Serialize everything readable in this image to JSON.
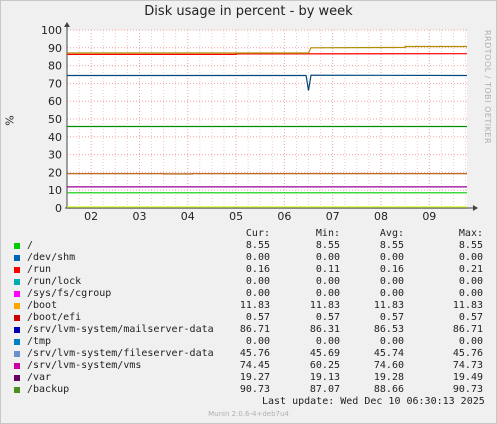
{
  "title": "Disk usage in percent - by week",
  "side_label": "RRDTOOL / TOBI OETIKER",
  "ylabel": "%",
  "chart_data": {
    "type": "line",
    "title": "Disk usage in percent - by week",
    "xlabel": "",
    "ylabel": "%",
    "ylim": [
      0,
      100
    ],
    "yticks": [
      0,
      10,
      20,
      30,
      40,
      50,
      60,
      70,
      80,
      90,
      100
    ],
    "xlim": [
      1.5,
      9.78
    ],
    "xticks": [
      2,
      3,
      4,
      5,
      6,
      7,
      8,
      9
    ],
    "xtick_labels": [
      "02",
      "03",
      "04",
      "05",
      "06",
      "07",
      "08",
      "09"
    ],
    "grid": true,
    "series": [
      {
        "name": "/",
        "color": "#00cc00",
        "points": [
          [
            1.5,
            8.55
          ],
          [
            9.78,
            8.55
          ]
        ]
      },
      {
        "name": "/dev/shm",
        "color": "#0066b3",
        "points": [
          [
            1.5,
            0.0
          ],
          [
            9.78,
            0.0
          ]
        ]
      },
      {
        "name": "/run",
        "color": "#ff8000",
        "points": [
          [
            1.5,
            0.16
          ],
          [
            9.78,
            0.16
          ]
        ]
      },
      {
        "name": "/run/lock",
        "color": "#ffcc00",
        "points": [
          [
            1.5,
            0.0
          ],
          [
            9.78,
            0.0
          ]
        ]
      },
      {
        "name": "/sys/fs/cgroup",
        "color": "#330099",
        "points": [
          [
            1.5,
            0.0
          ],
          [
            9.78,
            0.0
          ]
        ]
      },
      {
        "name": "/boot",
        "color": "#990099",
        "points": [
          [
            1.5,
            11.83
          ],
          [
            9.78,
            11.83
          ]
        ]
      },
      {
        "name": "/boot/efi",
        "color": "#ccff00",
        "points": [
          [
            1.5,
            0.57
          ],
          [
            9.78,
            0.57
          ]
        ]
      },
      {
        "name": "/srv/lvm-system/mailserver-data",
        "color": "#ff0000",
        "points": [
          [
            1.5,
            86.31
          ],
          [
            5.0,
            86.31
          ],
          [
            5.0,
            86.6
          ],
          [
            9.78,
            86.71
          ]
        ]
      },
      {
        "name": "/tmp",
        "color": "#808080",
        "points": [
          [
            1.5,
            0.0
          ],
          [
            9.78,
            0.0
          ]
        ]
      },
      {
        "name": "/srv/lvm-system/fileserver-data",
        "color": "#008f00",
        "points": [
          [
            1.5,
            45.76
          ],
          [
            9.78,
            45.76
          ]
        ]
      },
      {
        "name": "/srv/lvm-system/vms",
        "color": "#00487d",
        "points": [
          [
            1.5,
            74.45
          ],
          [
            6.45,
            74.45
          ],
          [
            6.5,
            66.0
          ],
          [
            6.55,
            74.6
          ],
          [
            9.78,
            74.45
          ]
        ]
      },
      {
        "name": "/var",
        "color": "#b35a00",
        "points": [
          [
            1.5,
            19.27
          ],
          [
            3.5,
            19.27
          ],
          [
            3.5,
            19.13
          ],
          [
            4.1,
            19.13
          ],
          [
            4.1,
            19.27
          ],
          [
            9.78,
            19.27
          ]
        ]
      },
      {
        "name": "/backup",
        "color": "#b38f00",
        "points": [
          [
            1.5,
            87.07
          ],
          [
            6.5,
            87.07
          ],
          [
            6.55,
            90.0
          ],
          [
            8.5,
            90.2
          ],
          [
            8.5,
            90.73
          ],
          [
            9.78,
            90.73
          ]
        ]
      }
    ]
  },
  "legend": {
    "headers": [
      "Cur:",
      "Min:",
      "Avg:",
      "Max:"
    ],
    "rows": [
      {
        "name": "/",
        "color": "#00cc00",
        "cur": "8.55",
        "min": "8.55",
        "avg": "8.55",
        "max": "8.55"
      },
      {
        "name": "/dev/shm",
        "color": "#0066b3",
        "cur": "0.00",
        "min": "0.00",
        "avg": "0.00",
        "max": "0.00"
      },
      {
        "name": "/run",
        "color": "#ff0000",
        "cur": "0.16",
        "min": "0.11",
        "avg": "0.16",
        "max": "0.21"
      },
      {
        "name": "/run/lock",
        "color": "#00aeae",
        "cur": "0.00",
        "min": "0.00",
        "avg": "0.00",
        "max": "0.00"
      },
      {
        "name": "/sys/fs/cgroup",
        "color": "#ff00ff",
        "cur": "0.00",
        "min": "0.00",
        "avg": "0.00",
        "max": "0.00"
      },
      {
        "name": "/boot",
        "color": "#ffa500",
        "cur": "11.83",
        "min": "11.83",
        "avg": "11.83",
        "max": "11.83"
      },
      {
        "name": "/boot/efi",
        "color": "#cc0000",
        "cur": "0.57",
        "min": "0.57",
        "avg": "0.57",
        "max": "0.57"
      },
      {
        "name": "/srv/lvm-system/mailserver-data",
        "color": "#0000b3",
        "cur": "86.71",
        "min": "86.31",
        "avg": "86.53",
        "max": "86.71"
      },
      {
        "name": "/tmp",
        "color": "#0080c0",
        "cur": "0.00",
        "min": "0.00",
        "avg": "0.00",
        "max": "0.00"
      },
      {
        "name": "/srv/lvm-system/fileserver-data",
        "color": "#6b8ecf",
        "cur": "45.76",
        "min": "45.69",
        "avg": "45.74",
        "max": "45.76"
      },
      {
        "name": "/srv/lvm-system/vms",
        "color": "#cc00aa",
        "cur": "74.45",
        "min": "60.25",
        "avg": "74.60",
        "max": "74.73"
      },
      {
        "name": "/var",
        "color": "#660066",
        "cur": "19.27",
        "min": "19.13",
        "avg": "19.28",
        "max": "19.49"
      },
      {
        "name": "/backup",
        "color": "#4a8f20",
        "cur": "90.73",
        "min": "87.07",
        "avg": "88.66",
        "max": "90.73"
      }
    ]
  },
  "last_update": "Last update:  Wed Dec 10 06:30:13 2025",
  "footer": "Munin 2.0.6-4+deb7u4"
}
